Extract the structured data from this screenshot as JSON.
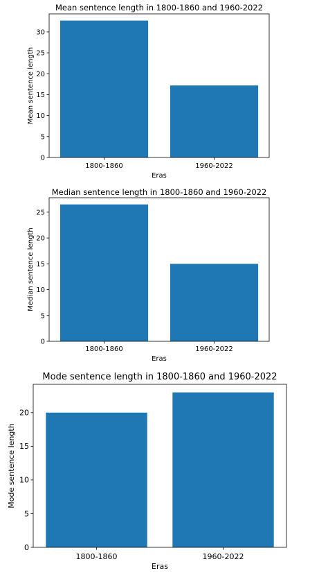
{
  "chart_data": [
    {
      "type": "bar",
      "title": "Mean sentence length in 1800-1860 and 1960-2022",
      "xlabel": "Eras",
      "ylabel": "Mean sentence length",
      "categories": [
        "1800-1860",
        "1960-2022"
      ],
      "values": [
        32.7,
        17.2
      ],
      "ylim": [
        0,
        34.3
      ],
      "yticks": [
        0,
        5,
        10,
        15,
        20,
        25,
        30
      ],
      "color": "#1f77b4",
      "grid": false
    },
    {
      "type": "bar",
      "title": "Median sentence length in 1800-1860 and 1960-2022",
      "xlabel": "Eras",
      "ylabel": "Median sentence length",
      "categories": [
        "1800-1860",
        "1960-2022"
      ],
      "values": [
        26.5,
        15
      ],
      "ylim": [
        0,
        27.8
      ],
      "yticks": [
        0,
        5,
        10,
        15,
        20,
        25
      ],
      "color": "#1f77b4",
      "grid": false
    },
    {
      "type": "bar",
      "title": "Mode sentence length in 1800-1860 and 1960-2022",
      "xlabel": "Eras",
      "ylabel": "Mode sentence length",
      "categories": [
        "1800-1860",
        "1960-2022"
      ],
      "values": [
        20,
        23
      ],
      "ylim": [
        0,
        24.2
      ],
      "yticks": [
        0,
        5,
        10,
        15,
        20
      ],
      "color": "#1f77b4",
      "grid": false
    }
  ]
}
